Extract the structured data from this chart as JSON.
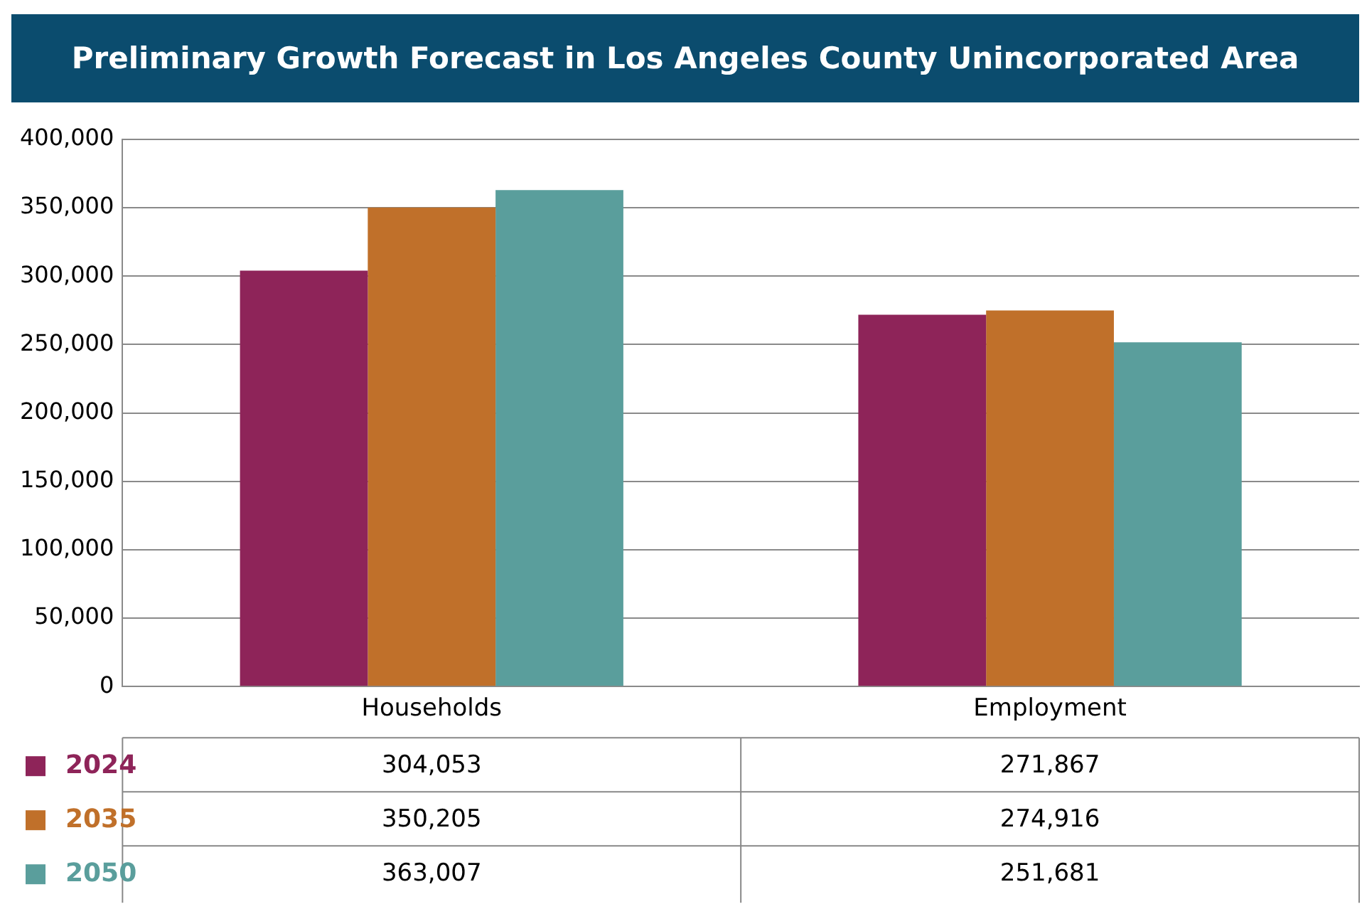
{
  "chart_data": {
    "type": "bar",
    "title": "Preliminary Growth Forecast in Los Angeles County Unincorporated Area",
    "categories": [
      "Households",
      "Employment"
    ],
    "series": [
      {
        "name": "2024",
        "color": "#8e2459",
        "values": [
          304053,
          271867
        ],
        "value_labels": [
          "304,053",
          "271,867"
        ]
      },
      {
        "name": "2035",
        "color": "#c0702a",
        "values": [
          350205,
          274916
        ],
        "value_labels": [
          "350,205",
          "274,916"
        ]
      },
      {
        "name": "2050",
        "color": "#5a9e9c",
        "values": [
          363007,
          251681
        ],
        "value_labels": [
          "363,007",
          "251,681"
        ]
      }
    ],
    "ylim": [
      0,
      400000
    ],
    "yticks": [
      {
        "value": 0,
        "label": "0"
      },
      {
        "value": 50000,
        "label": "50,000"
      },
      {
        "value": 100000,
        "label": "100,000"
      },
      {
        "value": 150000,
        "label": "150,000"
      },
      {
        "value": 200000,
        "label": "200,000"
      },
      {
        "value": 250000,
        "label": "250,000"
      },
      {
        "value": 300000,
        "label": "300,000"
      },
      {
        "value": 350000,
        "label": "350,000"
      },
      {
        "value": 400000,
        "label": "400,000"
      }
    ],
    "grid": "y",
    "legend": "bottom left"
  }
}
